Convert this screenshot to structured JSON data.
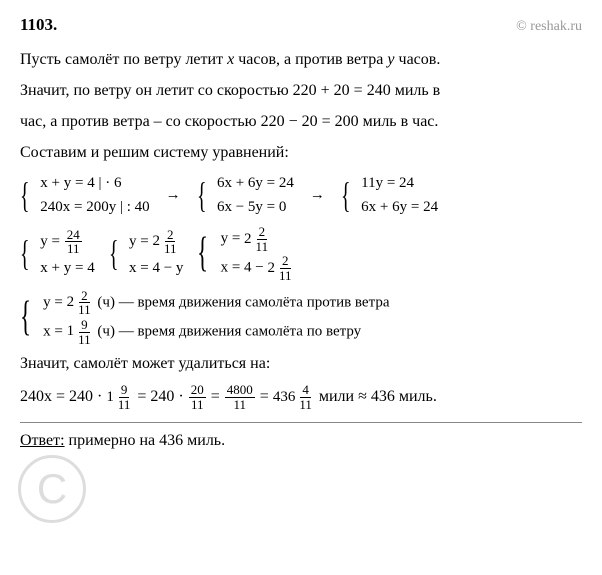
{
  "header": {
    "problem": "1103.",
    "site": "© reshak.ru"
  },
  "p1": {
    "a": "Пусть самолёт по ветру летит ",
    "x": "x",
    "b": " часов, а против ветра ",
    "y": "y",
    "c": " часов."
  },
  "p2": {
    "a": "Значит, по ветру он летит со скоростью  ",
    "expr1": "220 + 20 = 240",
    "b": " миль в",
    "c": "час, а против ветра – со скоростью ",
    "expr2": "220 − 20 = 200",
    "d": " миль в час."
  },
  "p3": "Составим и решим систему уравнений:",
  "sys1": {
    "g1": {
      "r1": "x + y = 4      | · 6",
      "r2": "240x = 200y  | : 40"
    },
    "arrow1": "→",
    "g2": {
      "r1": "6x + 6y = 24",
      "r2": "6x − 5y = 0"
    },
    "arrow2": "→",
    "g3": {
      "r1": "   11y = 24",
      "r2": "6x + 6y = 24"
    }
  },
  "sys2": {
    "g1": {
      "r1": {
        "pre": "y = ",
        "num": "24",
        "den": "11"
      },
      "r2": "x + y = 4"
    },
    "g2": {
      "r1": {
        "pre": "y = ",
        "whole": "2",
        "num": "2",
        "den": "11"
      },
      "r2": "x = 4 − y"
    },
    "g3": {
      "r1": {
        "pre": "   y = ",
        "whole": "2",
        "num": "2",
        "den": "11"
      },
      "r2": {
        "pre": "x = 4 − ",
        "whole": "2",
        "num": "2",
        "den": "11"
      }
    }
  },
  "sys3": {
    "r1": {
      "pre": "y = ",
      "whole": "2",
      "num": "2",
      "den": "11",
      "post": " (ч) — время движения самолёта против ветра"
    },
    "r2": {
      "pre": "  x = ",
      "whole": "1",
      "num": "9",
      "den": "11",
      "post": " (ч) — время движения самолёта по ветру"
    }
  },
  "p4": "Значит, самолёт может удалиться на:",
  "calc": {
    "a": "240x = 240 · ",
    "m1": {
      "whole": "1",
      "num": "9",
      "den": "11"
    },
    "b": " = 240 · ",
    "f2": {
      "num": "20",
      "den": "11"
    },
    "c": " = ",
    "f3": {
      "num": "4800",
      "den": "11"
    },
    "d": " = ",
    "m4": {
      "whole": "436",
      "num": "4",
      "den": "11"
    },
    "e": " мили  ≈ 436 миль."
  },
  "answer": {
    "label": "Ответ:",
    "text": " примерно на 436 миль."
  },
  "colors": {
    "text": "#000000",
    "muted": "#999999",
    "rule": "#888888",
    "bg": "#ffffff"
  }
}
